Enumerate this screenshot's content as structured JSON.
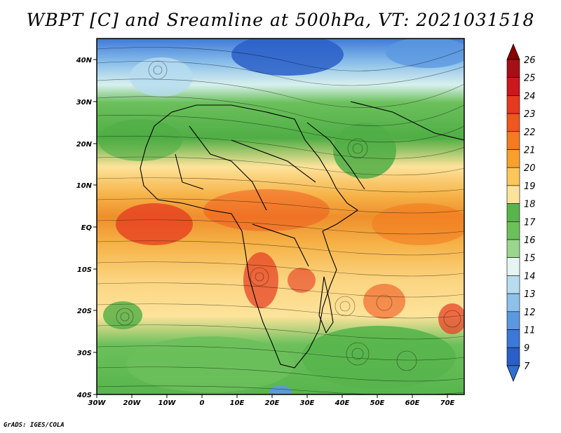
{
  "title": "WBPT [C] and Sreamline at 500hPa, VT: 2021031518",
  "credit": "GrADS: IGES/COLA",
  "map": {
    "lat_labels": [
      "40N",
      "30N",
      "20N",
      "10N",
      "EQ",
      "10S",
      "20S",
      "30S",
      "40S"
    ],
    "lon_labels": [
      "30W",
      "20W",
      "10W",
      "0",
      "10E",
      "20E",
      "30E",
      "40E",
      "50E",
      "60E",
      "70E"
    ],
    "lat_range": [
      -40,
      45
    ],
    "lon_range": [
      -30,
      75
    ]
  },
  "colorbar": {
    "labels": [
      "26",
      "25",
      "24",
      "23",
      "22",
      "21",
      "20",
      "19",
      "18",
      "17",
      "16",
      "15",
      "14",
      "13",
      "12",
      "11",
      "9",
      "7"
    ],
    "colors": [
      "#a50f15",
      "#cb181d",
      "#e6391f",
      "#f0561e",
      "#f47b20",
      "#f8a02b",
      "#fbc75a",
      "#fde39a",
      "#58b54d",
      "#6cc05c",
      "#9ad68c",
      "#e4f5f2",
      "#b7dcf0",
      "#8dc1ea",
      "#5b98e0",
      "#3c78d8",
      "#2a5fc8"
    ],
    "top_arrow_color": "#8b0000",
    "bottom_arrow_color": "#2f6fd0"
  }
}
